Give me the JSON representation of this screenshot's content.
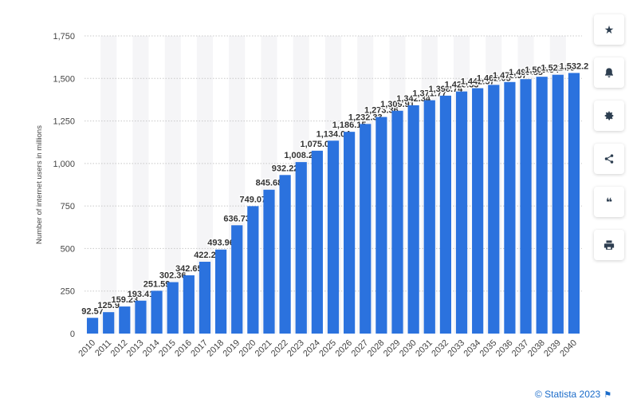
{
  "chart_data": {
    "type": "bar",
    "categories": [
      "2010",
      "2011",
      "2012",
      "2013",
      "2014",
      "2015",
      "2016",
      "2017",
      "2018",
      "2019",
      "2020",
      "2021",
      "2022",
      "2023",
      "2024",
      "2025",
      "2026",
      "2027",
      "2028",
      "2029",
      "2030",
      "2031",
      "2032",
      "2033",
      "2034",
      "2035",
      "2036",
      "2037",
      "2038",
      "2039",
      "2040"
    ],
    "values": [
      92.57,
      125.9,
      159.23,
      193.41,
      251.59,
      302.36,
      342.65,
      422.2,
      493.96,
      636.73,
      749.07,
      845.68,
      932.22,
      1008.21,
      1075.08,
      1134.04,
      1186.15,
      1232.33,
      1273.36,
      1309.91,
      1342.34,
      1371.77,
      1398.74,
      1423.33,
      1442.57,
      1462.05,
      1478.97,
      1495.85,
      1509.84,
      1521.55,
      1532.2
    ],
    "labels": [
      "92.57",
      "125.9",
      "159.23",
      "193.41",
      "251.59",
      "302.36",
      "342.65",
      "422.2",
      "493.96",
      "636.73",
      "749.07",
      "845.68",
      "932.22",
      "1,008.21",
      "1,075.08",
      "1,134.04",
      "1,186.15",
      "1,232.33",
      "1,273.36",
      "1,309.91",
      "1,342.34",
      "1,371.77",
      "1,398.74",
      "1,423.33",
      "1,442.57",
      "1,462.05",
      "1,478.97",
      "1,495.85",
      "1,509.84",
      "1,521.55",
      "1,532.2"
    ],
    "yticks": [
      0,
      250,
      500,
      750,
      1000,
      1250,
      1500,
      1750
    ],
    "ytick_labels": [
      "0",
      "250",
      "500",
      "750",
      "1,000",
      "1,250",
      "1,500",
      "1,750"
    ],
    "ylim": [
      0,
      1750
    ],
    "ylabel": "Number of internet users in millions",
    "xlabel": "",
    "title": "",
    "grid": true,
    "bar_color": "#2b72de",
    "band_color": "#f5f5f7"
  },
  "toolbar": [
    {
      "icon": "star-icon",
      "glyph": "★"
    },
    {
      "icon": "bell-icon",
      "glyph": "bell"
    },
    {
      "icon": "gear-icon",
      "glyph": "gear"
    },
    {
      "icon": "share-icon",
      "glyph": "share"
    },
    {
      "icon": "quote-icon",
      "glyph": "❝"
    },
    {
      "icon": "print-icon",
      "glyph": "print"
    }
  ],
  "credit": {
    "text": "© Statista 2023",
    "color": "#1a6bc9"
  }
}
